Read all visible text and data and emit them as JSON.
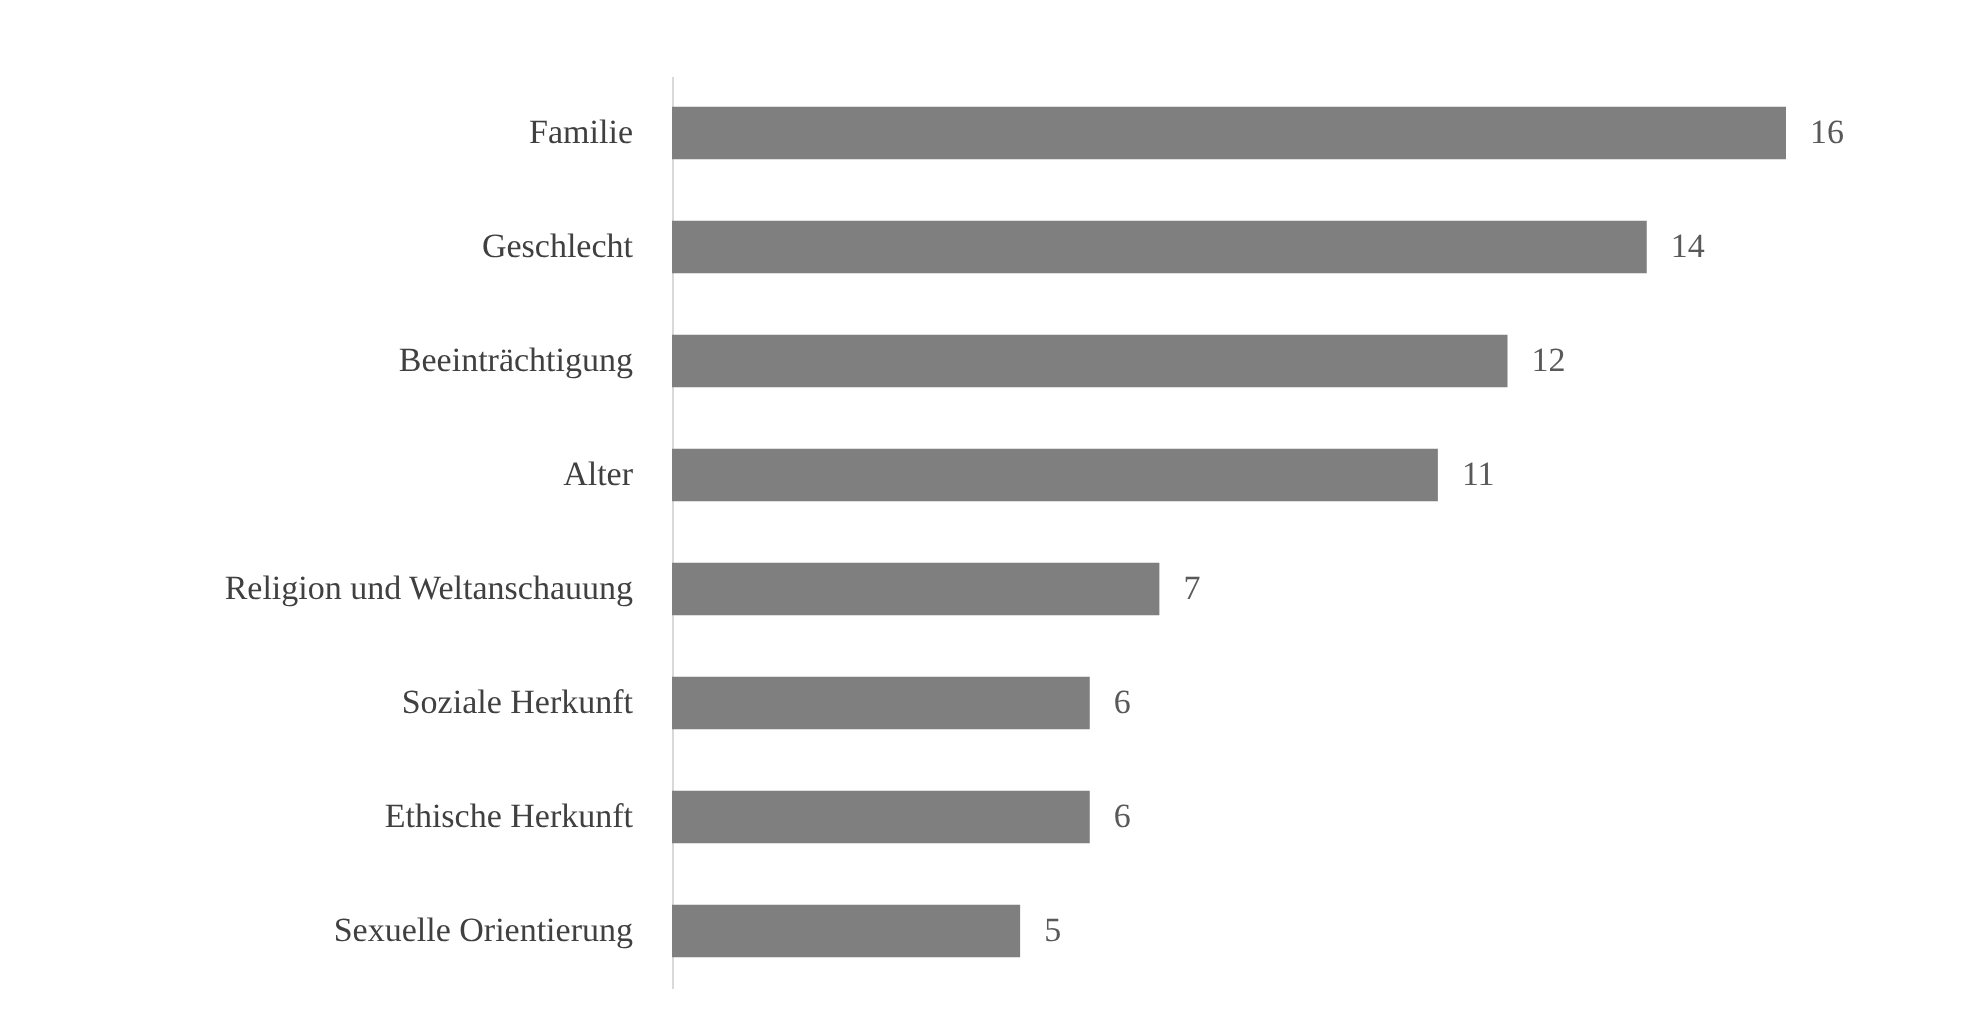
{
  "chart_data": {
    "type": "bar",
    "orientation": "horizontal",
    "categories": [
      "Familie",
      "Geschlecht",
      "Beeinträchtigung",
      "Alter",
      "Religion und Weltanschauung",
      "Soziale Herkunft",
      "Ethische Herkunft",
      "Sexuelle Orientierung"
    ],
    "values": [
      16,
      14,
      12,
      11,
      7,
      6,
      6,
      5
    ],
    "color": "#7f7f7f",
    "data_labels": true
  }
}
